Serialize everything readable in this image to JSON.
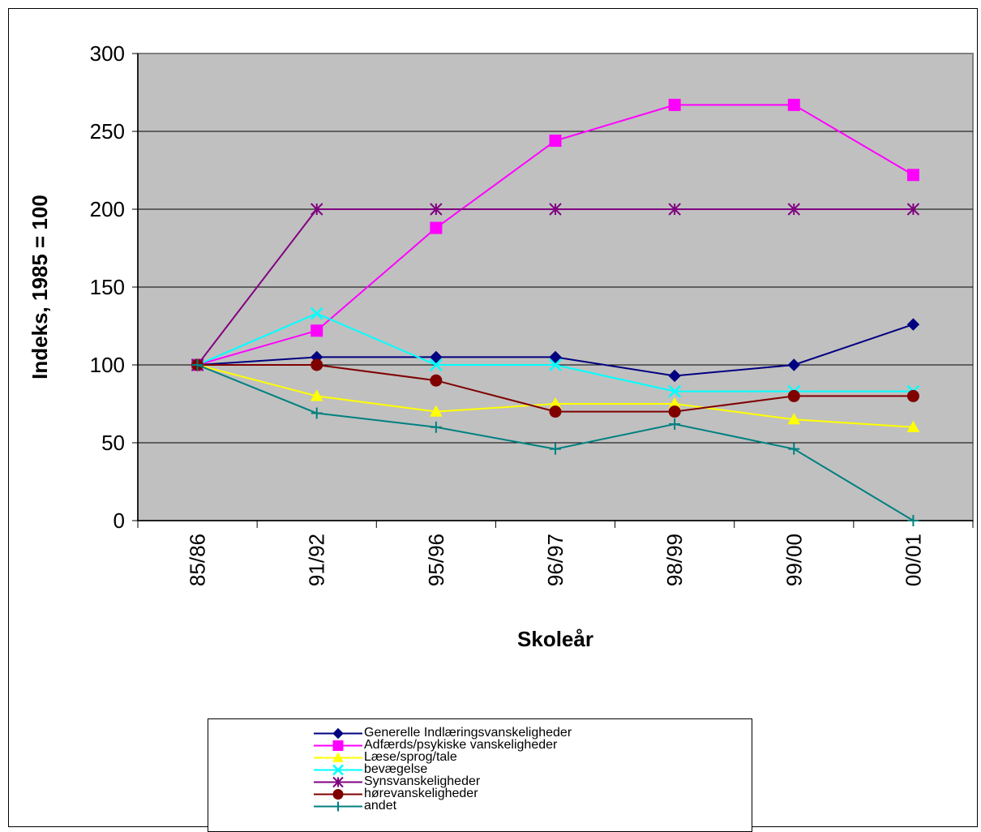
{
  "chart_data": {
    "type": "line",
    "categories": [
      "85/86",
      "91/92",
      "95/96",
      "96/97",
      "98/99",
      "99/00",
      "00/01"
    ],
    "ylabel": "Indeks, 1985 = 100",
    "xlabel": "Skoleår",
    "ylim": [
      0,
      300
    ],
    "yticks": [
      0,
      50,
      100,
      150,
      200,
      250,
      300
    ],
    "grid": true,
    "legend_position": "bottom",
    "series": [
      {
        "name": "Generelle Indlæringsvanskeligheder",
        "color": "#000080",
        "marker": "diamond",
        "values": [
          100,
          105,
          105,
          105,
          93,
          100,
          126
        ]
      },
      {
        "name": "Adfærds/psykiske vanskeligheder",
        "color": "#FF00FF",
        "marker": "square",
        "values": [
          100,
          122,
          188,
          244,
          267,
          267,
          222
        ]
      },
      {
        "name": "Læse/sprog/tale",
        "color": "#FFFF00",
        "marker": "triangle",
        "values": [
          100,
          80,
          70,
          75,
          75,
          65,
          60
        ]
      },
      {
        "name": "bevægelse",
        "color": "#00FFFF",
        "marker": "x",
        "values": [
          100,
          133,
          100,
          100,
          83,
          83,
          83
        ]
      },
      {
        "name": "Synsvanskeligheder",
        "color": "#800080",
        "marker": "asterisk",
        "values": [
          100,
          200,
          200,
          200,
          200,
          200,
          200
        ]
      },
      {
        "name": "hørevanskeligheder",
        "color": "#800000",
        "marker": "circle",
        "values": [
          100,
          100,
          90,
          70,
          70,
          80,
          80
        ]
      },
      {
        "name": "andet",
        "color": "#008080",
        "marker": "plus",
        "values": [
          100,
          69,
          60,
          46,
          62,
          46,
          0
        ]
      }
    ],
    "plot_background": "#C0C0C0"
  }
}
